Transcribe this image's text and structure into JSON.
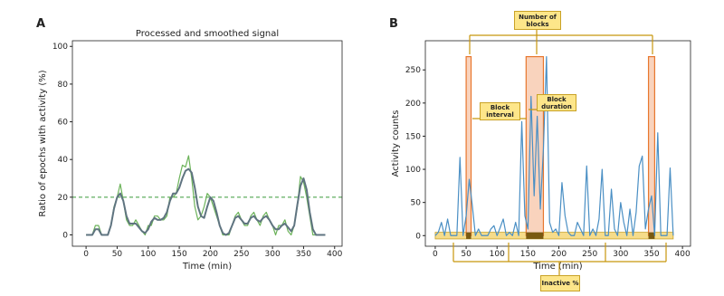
{
  "chart_data": [
    {
      "type": "line",
      "panel": "A",
      "title": "Processed and smoothed signal",
      "xlabel": "Time (min)",
      "ylabel": "Ratio of epochs with activity (%)",
      "x": [
        0,
        5,
        10,
        15,
        20,
        25,
        30,
        35,
        40,
        45,
        50,
        55,
        60,
        65,
        70,
        75,
        80,
        85,
        90,
        95,
        100,
        105,
        110,
        115,
        120,
        125,
        130,
        135,
        140,
        145,
        150,
        155,
        160,
        165,
        170,
        175,
        180,
        185,
        190,
        195,
        200,
        205,
        210,
        215,
        220,
        225,
        230,
        235,
        240,
        245,
        250,
        255,
        260,
        265,
        270,
        275,
        280,
        285,
        290,
        295,
        300,
        305,
        310,
        315,
        320,
        325,
        330,
        335,
        340,
        345,
        350,
        355,
        360,
        365,
        370,
        375,
        380,
        385
      ],
      "series": [
        {
          "color": "#6cb35a",
          "width": 1.2,
          "values": [
            0,
            0,
            0,
            5,
            5,
            0,
            0,
            0,
            5,
            15,
            20,
            27,
            18,
            8,
            5,
            5,
            8,
            5,
            2,
            0,
            5,
            5,
            10,
            10,
            8,
            8,
            10,
            20,
            20,
            22,
            30,
            37,
            36,
            42,
            30,
            15,
            8,
            10,
            15,
            22,
            20,
            15,
            10,
            5,
            0,
            0,
            0,
            5,
            10,
            12,
            8,
            5,
            5,
            10,
            12,
            8,
            5,
            10,
            12,
            8,
            5,
            0,
            5,
            5,
            8,
            2,
            0,
            5,
            15,
            31,
            28,
            20,
            10,
            0,
            0,
            0,
            0,
            0
          ]
        },
        {
          "color": "#5f7480",
          "width": 2,
          "values": [
            0,
            0,
            0,
            3,
            3,
            0,
            0,
            0,
            5,
            14,
            20,
            22,
            18,
            10,
            6,
            6,
            6,
            4,
            2,
            1,
            3,
            7,
            9,
            8,
            8,
            9,
            12,
            18,
            22,
            22,
            25,
            30,
            34,
            35,
            33,
            25,
            15,
            10,
            9,
            15,
            20,
            18,
            12,
            5,
            1,
            0,
            1,
            5,
            9,
            10,
            8,
            6,
            6,
            9,
            10,
            8,
            7,
            9,
            10,
            8,
            5,
            3,
            3,
            5,
            6,
            4,
            2,
            5,
            16,
            26,
            30,
            24,
            12,
            3,
            0,
            0,
            0,
            0
          ]
        }
      ],
      "threshold": 20,
      "threshold_color": "#3a9a3a",
      "xlim": [
        -22,
        412
      ],
      "xticks": [
        0,
        50,
        100,
        150,
        200,
        250,
        300,
        350,
        400
      ],
      "ylim": [
        -6,
        103
      ],
      "yticks": [
        0,
        20,
        40,
        60,
        80,
        100
      ]
    },
    {
      "type": "line",
      "panel": "B",
      "xlabel": "Time (min)",
      "ylabel": "Activity counts",
      "x": [
        0,
        5,
        10,
        15,
        20,
        25,
        30,
        35,
        40,
        45,
        50,
        55,
        60,
        65,
        70,
        75,
        80,
        85,
        90,
        95,
        100,
        105,
        110,
        115,
        120,
        125,
        130,
        135,
        140,
        145,
        150,
        155,
        160,
        165,
        170,
        175,
        180,
        185,
        190,
        195,
        200,
        205,
        210,
        215,
        220,
        225,
        230,
        235,
        240,
        245,
        250,
        255,
        260,
        265,
        270,
        275,
        280,
        285,
        290,
        295,
        300,
        305,
        310,
        315,
        320,
        325,
        330,
        335,
        340,
        345,
        350,
        355,
        360,
        365,
        370,
        375,
        380,
        385
      ],
      "series": [
        {
          "color": "#4a8fc4",
          "width": 1.2,
          "values": [
            0,
            5,
            20,
            0,
            25,
            0,
            0,
            0,
            118,
            0,
            30,
            85,
            45,
            0,
            10,
            0,
            0,
            0,
            10,
            15,
            0,
            12,
            25,
            0,
            5,
            0,
            20,
            0,
            172,
            30,
            10,
            210,
            60,
            180,
            40,
            130,
            270,
            20,
            5,
            10,
            0,
            80,
            30,
            5,
            0,
            0,
            20,
            10,
            0,
            105,
            0,
            10,
            0,
            25,
            100,
            0,
            0,
            70,
            10,
            0,
            50,
            20,
            0,
            40,
            0,
            35,
            105,
            120,
            10,
            40,
            60,
            0,
            155,
            0,
            0,
            0,
            102,
            0
          ]
        }
      ],
      "blocks": [
        {
          "start": 50,
          "end": 58
        },
        {
          "start": 147,
          "end": 175
        },
        {
          "start": 345,
          "end": 355
        }
      ],
      "block_top": 270,
      "annotations": [
        "Number of blocks",
        "Block interval",
        "Block duration",
        "Inactive %"
      ],
      "xlim": [
        -16,
        413
      ],
      "xticks": [
        0,
        50,
        100,
        150,
        200,
        250,
        300,
        350,
        400
      ],
      "ylim": [
        -16,
        294
      ],
      "yticks": [
        0,
        50,
        100,
        150,
        200,
        250
      ]
    }
  ]
}
